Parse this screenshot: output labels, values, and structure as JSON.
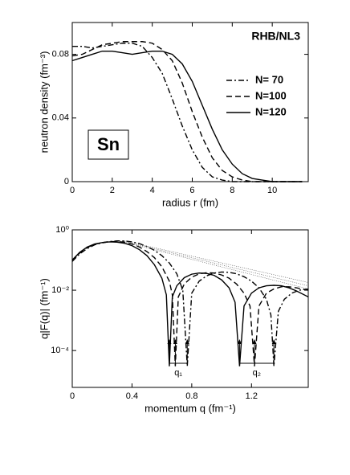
{
  "chart_data": [
    {
      "type": "line",
      "title": "RHB/NL3",
      "annotation": "Sn",
      "x_label": "radius r (fm)",
      "y_label": "neutron density (fm⁻³)",
      "xlim": [
        0,
        11.8
      ],
      "ylim": [
        0,
        0.1
      ],
      "xticks": [
        0,
        2,
        4,
        6,
        8,
        10
      ],
      "yticks": [
        0,
        0.04,
        0.08
      ],
      "legend": "right",
      "x": [
        0,
        0.5,
        1,
        1.5,
        2,
        2.5,
        3,
        3.5,
        4,
        4.5,
        5,
        5.5,
        6,
        6.5,
        7,
        7.5,
        8,
        8.5,
        9,
        9.5,
        10,
        10.5,
        11,
        11.5
      ],
      "series": [
        {
          "name": "N= 70",
          "color": "#000000",
          "dash": "dashdot",
          "values": [
            0.085,
            0.085,
            0.084,
            0.085,
            0.086,
            0.087,
            0.087,
            0.085,
            0.078,
            0.068,
            0.052,
            0.035,
            0.02,
            0.009,
            0.003,
            0.001,
            0,
            0,
            0,
            0,
            0,
            0,
            0,
            0
          ]
        },
        {
          "name": "N=100",
          "color": "#000000",
          "dash": "dashed",
          "values": [
            0.079,
            0.08,
            0.083,
            0.086,
            0.087,
            0.088,
            0.088,
            0.088,
            0.087,
            0.083,
            0.076,
            0.062,
            0.044,
            0.028,
            0.015,
            0.007,
            0.003,
            0.001,
            0,
            0,
            0,
            0,
            0,
            0
          ]
        },
        {
          "name": "N=120",
          "color": "#000000",
          "dash": "solid",
          "values": [
            0.076,
            0.078,
            0.08,
            0.082,
            0.082,
            0.081,
            0.08,
            0.081,
            0.082,
            0.082,
            0.08,
            0.074,
            0.063,
            0.048,
            0.033,
            0.02,
            0.011,
            0.005,
            0.002,
            0.001,
            0,
            0,
            0,
            0
          ]
        }
      ]
    },
    {
      "type": "line",
      "x_label": "momentum q (fm⁻¹)",
      "y_label": "q|F(q)| (fm⁻¹)",
      "xlim": [
        0,
        1.58
      ],
      "ylim": [
        6e-06,
        1
      ],
      "log_y": true,
      "xticks": [
        0,
        0.4,
        0.8,
        1.2
      ],
      "yticks": [
        {
          "value": 1,
          "label": "10⁰"
        },
        {
          "value": 0.01,
          "label": "10⁻²"
        },
        {
          "value": 0.0001,
          "label": "10⁻⁴"
        }
      ],
      "series": [
        {
          "color": "#000000",
          "dash": "dashdot",
          "x": [
            0,
            0.05,
            0.1,
            0.15,
            0.2,
            0.25,
            0.3,
            0.35,
            0.4,
            0.45,
            0.5,
            0.55,
            0.6,
            0.65,
            0.7,
            0.74,
            0.77,
            0.8,
            0.85,
            0.9,
            0.95,
            1.0,
            1.05,
            1.1,
            1.15,
            1.2,
            1.25,
            1.3,
            1.33,
            1.35,
            1.38,
            1.42,
            1.47,
            1.52,
            1.58
          ],
          "values": [
            0.09,
            0.16,
            0.24,
            0.32,
            0.37,
            0.41,
            0.43,
            0.43,
            0.4,
            0.35,
            0.28,
            0.21,
            0.14,
            0.08,
            0.035,
            0.01,
            3e-05,
            0.008,
            0.02,
            0.03,
            0.037,
            0.04,
            0.039,
            0.035,
            0.028,
            0.02,
            0.012,
            0.005,
            0.0015,
            3e-05,
            0.002,
            0.005,
            0.008,
            0.01,
            0.011
          ]
        },
        {
          "color": "#000000",
          "dash": "dashed",
          "x": [
            0,
            0.05,
            0.1,
            0.15,
            0.2,
            0.25,
            0.3,
            0.35,
            0.4,
            0.45,
            0.5,
            0.55,
            0.6,
            0.65,
            0.67,
            0.69,
            0.71,
            0.75,
            0.8,
            0.85,
            0.9,
            0.95,
            1.0,
            1.05,
            1.1,
            1.15,
            1.19,
            1.22,
            1.25,
            1.3,
            1.35,
            1.4,
            1.45,
            1.5,
            1.58
          ],
          "values": [
            0.1,
            0.17,
            0.26,
            0.33,
            0.38,
            0.41,
            0.41,
            0.39,
            0.34,
            0.27,
            0.19,
            0.12,
            0.06,
            0.02,
            0.007,
            3e-05,
            0.006,
            0.016,
            0.027,
            0.035,
            0.038,
            0.037,
            0.032,
            0.025,
            0.016,
            0.008,
            0.003,
            3e-05,
            0.003,
            0.008,
            0.011,
            0.013,
            0.013,
            0.012,
            0.01
          ]
        },
        {
          "color": "#000000",
          "dash": "solid",
          "x": [
            0,
            0.05,
            0.1,
            0.15,
            0.2,
            0.25,
            0.3,
            0.35,
            0.4,
            0.45,
            0.5,
            0.55,
            0.6,
            0.63,
            0.65,
            0.67,
            0.7,
            0.75,
            0.8,
            0.85,
            0.9,
            0.95,
            1.0,
            1.05,
            1.09,
            1.12,
            1.15,
            1.2,
            1.25,
            1.3,
            1.35,
            1.4,
            1.45,
            1.5,
            1.58
          ],
          "values": [
            0.1,
            0.18,
            0.27,
            0.34,
            0.38,
            0.4,
            0.39,
            0.36,
            0.3,
            0.22,
            0.14,
            0.07,
            0.025,
            0.007,
            3e-05,
            0.006,
            0.014,
            0.026,
            0.034,
            0.037,
            0.036,
            0.031,
            0.022,
            0.012,
            0.004,
            3e-05,
            0.003,
            0.008,
            0.012,
            0.014,
            0.0145,
            0.014,
            0.012,
            0.0095,
            0.006
          ]
        }
      ],
      "envelopes": {
        "x": [
          0.35,
          1.58
        ],
        "values": [
          [
            0.43,
            0.018
          ],
          [
            0.41,
            0.014
          ],
          [
            0.39,
            0.011
          ]
        ]
      },
      "markers": [
        {
          "label": "q₁",
          "x": [
            0.65,
            0.69,
            0.77
          ]
        },
        {
          "label": "q₂",
          "x": [
            1.12,
            1.22,
            1.35
          ]
        }
      ]
    }
  ]
}
